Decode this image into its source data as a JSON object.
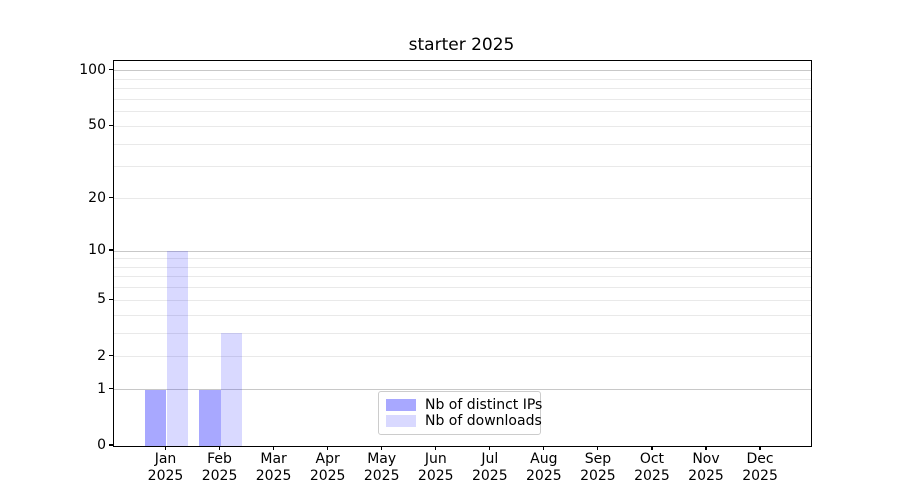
{
  "chart_data": {
    "type": "bar",
    "title": "starter 2025",
    "xlabel": "",
    "ylabel": "",
    "categories": [
      "Jan 2025",
      "Feb 2025",
      "Mar 2025",
      "Apr 2025",
      "May 2025",
      "Jun 2025",
      "Jul 2025",
      "Aug 2025",
      "Sep 2025",
      "Oct 2025",
      "Nov 2025",
      "Dec 2025"
    ],
    "series": [
      {
        "name": "Nb of distinct IPs",
        "color_hex": "#0000ff",
        "alpha": 0.34,
        "values": [
          1,
          1,
          0,
          0,
          0,
          0,
          0,
          0,
          0,
          0,
          0,
          0
        ]
      },
      {
        "name": "Nb of downloads",
        "color_hex": "#0000ff",
        "alpha": 0.15,
        "values": [
          10,
          3,
          0,
          0,
          0,
          0,
          0,
          0,
          0,
          0,
          0,
          0
        ]
      }
    ],
    "yscale": "log1p",
    "ylim": [
      0,
      113
    ],
    "yticks": [
      0,
      1,
      2,
      5,
      10,
      20,
      50,
      100
    ],
    "major_gridlines": [
      1,
      10,
      100
    ],
    "minor_gridlines": [
      2,
      3,
      4,
      5,
      6,
      7,
      8,
      9,
      20,
      30,
      40,
      50,
      60,
      70,
      80,
      90
    ],
    "grid": "on",
    "legend_position": "lower center"
  },
  "colors": {
    "major_grid": "#c8c8c8",
    "minor_grid": "#e9e9e9",
    "spine": "#000000",
    "text": "#000000",
    "legend_border": "#cccccc"
  }
}
